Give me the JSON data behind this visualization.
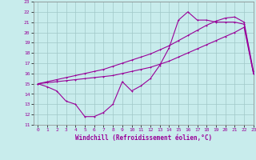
{
  "xlabel": "Windchill (Refroidissement éolien,°C)",
  "bg_color": "#c8ecec",
  "grid_color": "#a0c8c8",
  "line_color": "#990099",
  "xlim": [
    -0.5,
    23
  ],
  "ylim": [
    11,
    23
  ],
  "xticks": [
    0,
    1,
    2,
    3,
    4,
    5,
    6,
    7,
    8,
    9,
    10,
    11,
    12,
    13,
    14,
    15,
    16,
    17,
    18,
    19,
    20,
    21,
    22,
    23
  ],
  "yticks": [
    11,
    12,
    13,
    14,
    15,
    16,
    17,
    18,
    19,
    20,
    21,
    22,
    23
  ],
  "curve1_x": [
    0,
    1,
    2,
    3,
    4,
    5,
    6,
    7,
    8,
    9,
    10,
    11,
    12,
    13,
    14,
    15,
    16,
    17,
    18,
    19,
    20,
    21,
    22,
    23
  ],
  "curve1_y": [
    15.0,
    14.7,
    14.3,
    13.3,
    13.0,
    11.8,
    11.8,
    12.2,
    13.0,
    15.2,
    14.3,
    14.8,
    15.5,
    16.8,
    18.5,
    21.2,
    22.0,
    21.2,
    21.2,
    21.0,
    21.0,
    21.0,
    20.8,
    16.0
  ],
  "curve2_x": [
    0,
    1,
    2,
    3,
    4,
    5,
    6,
    7,
    8,
    9,
    10,
    11,
    12,
    13,
    14,
    15,
    16,
    17,
    18,
    19,
    20,
    21,
    22,
    23
  ],
  "curve2_y": [
    15.0,
    15.1,
    15.2,
    15.3,
    15.4,
    15.5,
    15.6,
    15.7,
    15.8,
    16.0,
    16.2,
    16.4,
    16.6,
    16.9,
    17.2,
    17.6,
    18.0,
    18.4,
    18.8,
    19.2,
    19.6,
    20.0,
    20.5,
    16.0
  ],
  "curve3_x": [
    0,
    1,
    2,
    3,
    4,
    5,
    6,
    7,
    8,
    9,
    10,
    11,
    12,
    13,
    14,
    15,
    16,
    17,
    18,
    19,
    20,
    21,
    22,
    23
  ],
  "curve3_y": [
    15.0,
    15.2,
    15.4,
    15.6,
    15.8,
    16.0,
    16.2,
    16.4,
    16.7,
    17.0,
    17.3,
    17.6,
    17.9,
    18.3,
    18.7,
    19.2,
    19.7,
    20.2,
    20.7,
    21.1,
    21.4,
    21.5,
    21.0,
    16.2
  ]
}
